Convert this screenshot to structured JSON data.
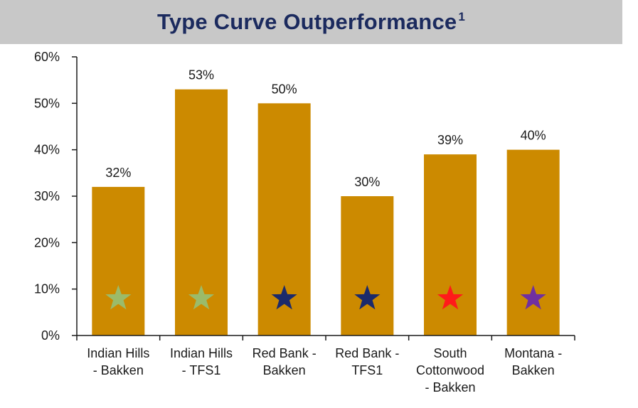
{
  "title": "Type Curve Outperformance",
  "title_superscript": "1",
  "colors": {
    "bar": "#cc8a00",
    "title_text": "#1b2a5e",
    "title_band": "#c8c8c8"
  },
  "chart_data": {
    "type": "bar",
    "categories": [
      [
        "Indian Hills",
        "- Bakken"
      ],
      [
        "Indian Hills",
        "- TFS1"
      ],
      [
        "Red Bank -",
        "Bakken"
      ],
      [
        "Red Bank -",
        "TFS1"
      ],
      [
        "South",
        "Cottonwood",
        "- Bakken"
      ],
      [
        "Montana -",
        "Bakken"
      ]
    ],
    "values": [
      32,
      53,
      50,
      30,
      39,
      40
    ],
    "data_labels": [
      "32%",
      "53%",
      "50%",
      "30%",
      "39%",
      "40%"
    ],
    "star_colors": [
      "#9bbb6a",
      "#9bbb6a",
      "#1b2a6b",
      "#1b2a6b",
      "#ff1a1a",
      "#7030a0"
    ],
    "ylim": [
      0,
      60
    ],
    "yticks": [
      0,
      10,
      20,
      30,
      40,
      50,
      60
    ],
    "ytick_labels": [
      "0%",
      "10%",
      "20%",
      "30%",
      "40%",
      "50%",
      "60%"
    ],
    "grid": false,
    "legend": "none"
  }
}
